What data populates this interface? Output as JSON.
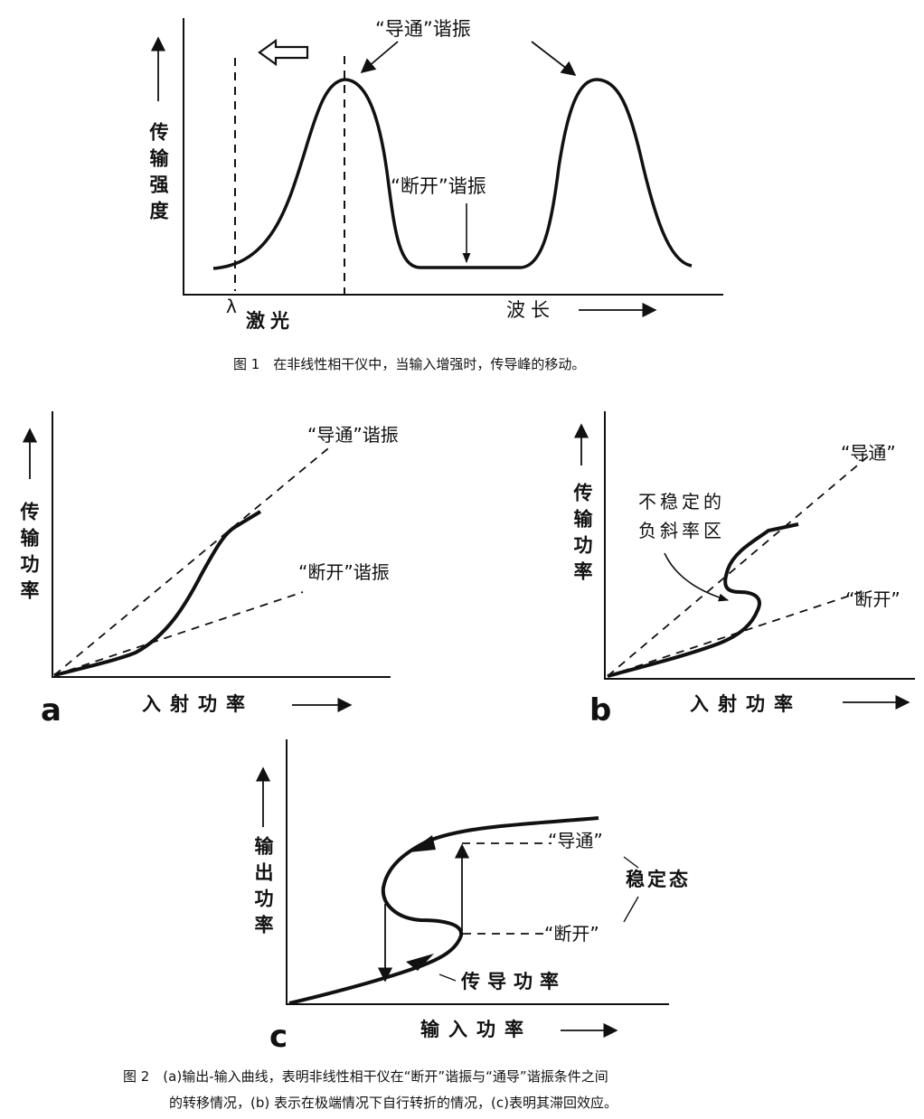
{
  "fig1": {
    "y_label": "传输强度",
    "laser_symbol": "λ",
    "laser_label": "激光",
    "x_label": "波长",
    "on_resonance": "“导通”谐振",
    "off_resonance": "“断开”谐振",
    "caption": "图 1　在非线性相干仪中，当输入增强时，传导峰的移动。"
  },
  "fig2a": {
    "panel": "a",
    "y_label": "传输功率",
    "x_label": "入射功率",
    "on_label": "“导通”谐振",
    "off_label": "“断开”谐振"
  },
  "fig2b": {
    "panel": "b",
    "y_label": "传输功率",
    "x_label": "入射功率",
    "unstable_line1": "不稳定的",
    "unstable_line2": "负斜率区",
    "on_label": "“导通”",
    "off_label": "“断开”"
  },
  "fig2c": {
    "panel": "c",
    "y_label": "输出功率",
    "x_label": "输入功率",
    "on_label": "“导通”",
    "off_label": "“断开”",
    "stable_label": "稳定态",
    "conduct_label": "传导功率"
  },
  "fig2_caption": {
    "line1": "图 2　(a)输出-输入曲线，表明非线性相干仪在“断开”谐振与“通导”谐振条件之间",
    "line2": "的转移情况，(b) 表示在极端情况下自行转折的情况，(c)表明其滞回效应。"
  }
}
